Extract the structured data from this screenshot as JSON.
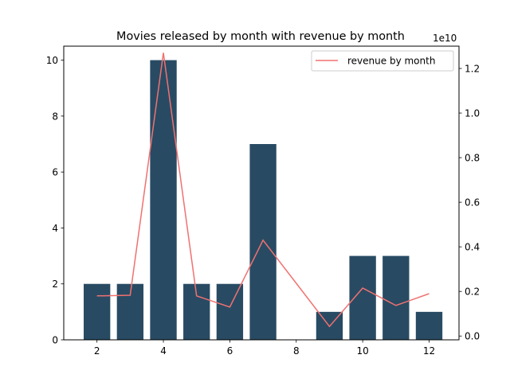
{
  "chart_data": {
    "type": "bar",
    "title": "Movies released by month with revenue by month",
    "xlabel": "",
    "ylabel": "",
    "y2label": "",
    "x_ticks": [
      "2",
      "4",
      "6",
      "8",
      "10",
      "12"
    ],
    "y_ticks": [
      "0",
      "2",
      "4",
      "6",
      "8",
      "10"
    ],
    "y2_ticks": [
      "0.0",
      "0.2",
      "0.4",
      "0.6",
      "0.8",
      "1.0",
      "1.2"
    ],
    "y2_offset_label": "1e10",
    "xlim": [
      1.0,
      12.9
    ],
    "ylim": [
      0,
      10.5
    ],
    "y2lim": [
      -0.017,
      1.3
    ],
    "bars": {
      "color": "#284b63",
      "months": [
        2,
        3,
        4,
        5,
        6,
        7,
        9,
        10,
        11,
        12
      ],
      "values": [
        2,
        2,
        10,
        2,
        2,
        7,
        1,
        3,
        3,
        1
      ]
    },
    "series": [
      {
        "name": "revenue by month",
        "type": "line",
        "axis": "right",
        "color": "#f07171",
        "x": [
          2,
          3,
          4,
          5,
          6,
          7,
          9,
          10,
          11,
          12
        ],
        "values": [
          0.18,
          0.183,
          1.27,
          0.18,
          0.13,
          0.43,
          0.043,
          0.215,
          0.137,
          0.19
        ],
        "unit_multiplier": "1e10"
      }
    ],
    "legend": {
      "position": "top-right",
      "entries": [
        "revenue by month"
      ]
    },
    "grid": false
  }
}
